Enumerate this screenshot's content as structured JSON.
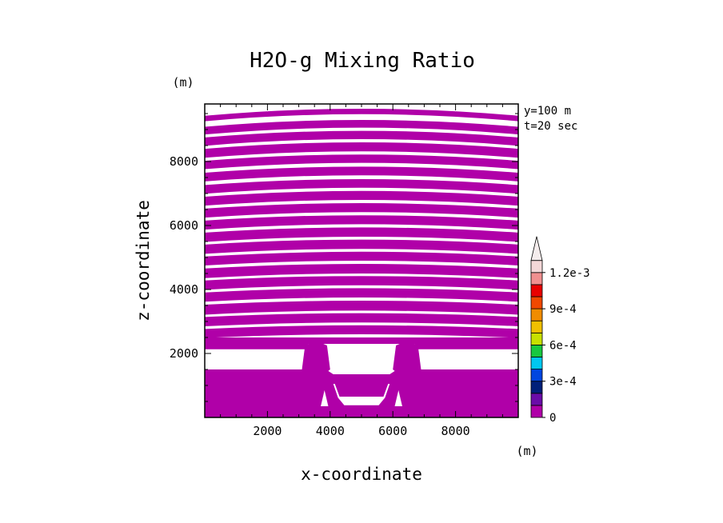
{
  "chart_data": {
    "type": "heatmap",
    "title": "H2O-g Mixing Ratio",
    "xlabel": "x-coordinate",
    "ylabel": "z-coordinate",
    "x_unit": "(m)",
    "y_unit": "(m)",
    "xlim": [
      0,
      10000
    ],
    "ylim": [
      0,
      9800
    ],
    "x_ticks": [
      "2000",
      "4000",
      "6000",
      "8000"
    ],
    "y_ticks": [
      "2000",
      "4000",
      "6000",
      "8000"
    ],
    "x_tick_values": [
      2000,
      4000,
      6000,
      8000
    ],
    "y_tick_values": [
      2000,
      4000,
      6000,
      8000
    ],
    "info": [
      "y=100 m",
      "t=20 sec"
    ],
    "fill_color": "#b000a8",
    "colorbar": {
      "colors": [
        "#b000a8",
        "#6a0ca8",
        "#00207a",
        "#0046e0",
        "#00c8f0",
        "#18c840",
        "#c8e000",
        "#f0c000",
        "#f08c00",
        "#f04800",
        "#e80000",
        "#f09090",
        "#f4d8d8"
      ],
      "tick_labels": [
        "0",
        "3e-4",
        "6e-4",
        "9e-4",
        "1.2e-3"
      ],
      "tick_values": [
        0,
        0.0003,
        0.0006,
        0.0009,
        0.0012
      ],
      "step": 0.0001,
      "extend_max": true
    },
    "stripes": {
      "note": "Pattern of alternating 0-level filled bands (z, m) separated by blank gaps",
      "bands": [
        [
          9480,
          9650
        ],
        [
          9060,
          9300
        ],
        [
          8700,
          8960
        ],
        [
          8320,
          8600
        ],
        [
          7960,
          8220
        ],
        [
          7570,
          7840
        ],
        [
          7180,
          7450
        ],
        [
          6800,
          7080
        ],
        [
          6420,
          6700
        ],
        [
          6040,
          6320
        ],
        [
          5650,
          5940
        ],
        [
          5270,
          5560
        ],
        [
          4900,
          5180
        ],
        [
          4500,
          4800
        ],
        [
          4130,
          4420
        ],
        [
          3750,
          4040
        ],
        [
          3340,
          3650
        ],
        [
          2970,
          3260
        ],
        [
          2600,
          2880
        ],
        [
          2130,
          2500
        ],
        [
          0,
          1500
        ]
      ]
    }
  }
}
